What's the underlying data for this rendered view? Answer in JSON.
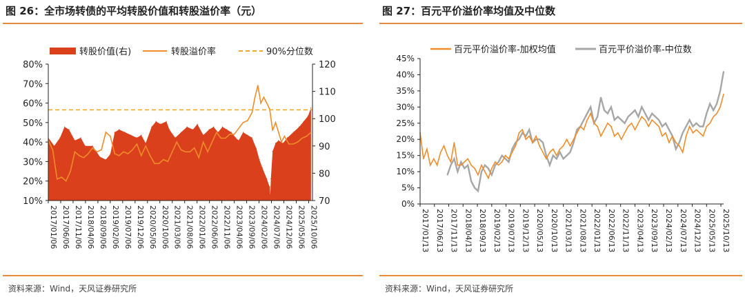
{
  "left_figure": {
    "title": "图 26：全市场转债的平均转股价值和转股溢价率（元）",
    "source": "资料来源：Wind，天风证券研究所"
  },
  "right_figure": {
    "title": "图 27：百元平价溢价率均值及中位数",
    "source": "资料来源：Wind，天风证券研究所"
  },
  "colors": {
    "accent": "#e68a3c",
    "bar_red": "#d9401b",
    "line_orange": "#f08c2a",
    "dash_orange": "#f2a827",
    "line_gray": "#a6a6a6",
    "axis": "#222222"
  },
  "chart_data": [
    {
      "type": "area",
      "title": "全市场转债的平均转股价值和转股溢价率（元）",
      "legend": [
        "转股价值(右)",
        "转股溢价率",
        "90%分位数"
      ],
      "legend_position": "top",
      "y_left": {
        "ylim": [
          10,
          80
        ],
        "ticks": [
          10,
          20,
          30,
          40,
          50,
          60,
          70,
          80
        ],
        "tick_labels": [
          "10%",
          "20%",
          "30%",
          "40%",
          "50%",
          "60%",
          "70%",
          "80%"
        ]
      },
      "y_right": {
        "ylim": [
          70,
          120
        ],
        "ticks": [
          70,
          80,
          90,
          100,
          110,
          120
        ],
        "tick_labels": [
          "70",
          "80",
          "90",
          "100",
          "110",
          "120"
        ]
      },
      "x_range": [
        2017.0,
        2025.95
      ],
      "x_ticks": [
        2017.0,
        2017.42,
        2017.84,
        2018.26,
        2018.68,
        2019.1,
        2019.52,
        2019.94,
        2020.36,
        2020.78,
        2021.2,
        2021.62,
        2022.04,
        2022.46,
        2022.88,
        2023.3,
        2023.72,
        2024.14,
        2024.56,
        2024.98,
        2025.4,
        2025.82
      ],
      "x_tick_labels": [
        "2017/01/06",
        "2017/06/06",
        "2017/11/06",
        "2018/04/06",
        "2018/09/06",
        "2019/02/06",
        "2019/07/06",
        "2019/12/06",
        "2020/05/06",
        "2020/10/06",
        "2021/03/06",
        "2021/08/06",
        "2022/01/06",
        "2022/06/06",
        "2022/11/06",
        "2023/04/06",
        "2023/09/06",
        "2024/02/06",
        "2024/07/06",
        "2024/12/06",
        "2025/05/06",
        "2025/10/06"
      ],
      "series": [
        {
          "name": "转股价值(右)",
          "type": "area",
          "axis": "right",
          "x": [
            2017.0,
            2017.2,
            2017.4,
            2017.55,
            2017.7,
            2017.9,
            2018.1,
            2018.25,
            2018.5,
            2018.75,
            2018.95,
            2019.1,
            2019.25,
            2019.4,
            2019.6,
            2019.8,
            2020.0,
            2020.15,
            2020.3,
            2020.5,
            2020.65,
            2020.8,
            2021.0,
            2021.1,
            2021.3,
            2021.5,
            2021.7,
            2021.9,
            2022.05,
            2022.25,
            2022.45,
            2022.6,
            2022.75,
            2022.9,
            2023.05,
            2023.2,
            2023.35,
            2023.45,
            2023.6,
            2023.75,
            2023.9,
            2024.05,
            2024.15,
            2024.25,
            2024.4,
            2024.5,
            2024.52,
            2024.54,
            2024.6,
            2024.7,
            2024.8,
            2024.95,
            2025.1,
            2025.3,
            2025.5,
            2025.65,
            2025.8,
            2025.9
          ],
          "values": [
            93,
            90,
            93,
            97,
            96,
            92,
            93,
            90,
            90,
            86,
            85,
            87,
            95,
            96,
            95,
            94,
            93,
            94,
            91,
            97,
            99,
            98,
            99,
            96,
            93,
            95,
            97,
            96,
            98,
            94,
            96,
            97,
            95,
            97,
            96,
            95,
            93,
            92,
            95,
            94,
            93,
            89,
            85,
            82,
            78,
            75,
            72,
            78,
            88,
            91,
            92,
            91,
            93,
            95,
            97,
            99,
            101,
            104
          ]
        },
        {
          "name": "转股溢价率",
          "type": "line",
          "axis": "left",
          "x": [
            2017.0,
            2017.15,
            2017.3,
            2017.45,
            2017.6,
            2017.75,
            2017.9,
            2018.05,
            2018.2,
            2018.35,
            2018.5,
            2018.65,
            2018.8,
            2018.95,
            2019.1,
            2019.25,
            2019.4,
            2019.55,
            2019.7,
            2019.85,
            2020.0,
            2020.15,
            2020.3,
            2020.45,
            2020.6,
            2020.75,
            2020.9,
            2021.05,
            2021.2,
            2021.35,
            2021.5,
            2021.65,
            2021.8,
            2021.95,
            2022.1,
            2022.25,
            2022.4,
            2022.55,
            2022.7,
            2022.85,
            2023.0,
            2023.15,
            2023.3,
            2023.45,
            2023.6,
            2023.75,
            2023.9,
            2024.0,
            2024.1,
            2024.2,
            2024.3,
            2024.4,
            2024.5,
            2024.6,
            2024.7,
            2024.8,
            2024.9,
            2025.0,
            2025.15,
            2025.3,
            2025.45,
            2025.6,
            2025.75,
            2025.9
          ],
          "values": [
            41,
            36,
            21,
            22,
            20,
            25,
            35,
            33,
            32,
            34,
            37,
            35,
            36,
            45,
            43,
            34,
            33,
            35,
            34,
            36,
            39,
            33,
            38,
            33,
            29,
            29,
            31,
            30,
            35,
            40,
            36,
            35,
            35,
            37,
            32,
            40,
            35,
            40,
            45,
            42,
            42,
            44,
            44,
            47,
            50,
            51,
            55,
            63,
            69,
            60,
            63,
            60,
            57,
            46,
            50,
            45,
            40,
            43,
            39,
            39,
            40,
            42,
            43,
            45
          ]
        },
        {
          "name": "90%分位数",
          "type": "dashed",
          "axis": "left",
          "values": [
            56.5
          ]
        }
      ]
    },
    {
      "type": "line",
      "title": "百元平价溢价率均值及中位数",
      "legend": [
        "百元平价溢价率-加权均值",
        "百元平价溢价率-中位数"
      ],
      "legend_position": "top",
      "y": {
        "ylim": [
          0,
          45
        ],
        "ticks": [
          0,
          5,
          10,
          15,
          20,
          25,
          30,
          35,
          40,
          45
        ],
        "tick_labels": [
          "0%",
          "5%",
          "10%",
          "15%",
          "20%",
          "25%",
          "30%",
          "35%",
          "40%",
          "45%"
        ]
      },
      "x_range": [
        2017.0,
        2025.9
      ],
      "x_ticks": [
        2017.0,
        2017.42,
        2017.84,
        2018.26,
        2018.68,
        2019.1,
        2019.52,
        2019.94,
        2020.36,
        2020.78,
        2021.2,
        2021.62,
        2022.04,
        2022.46,
        2022.88,
        2023.3,
        2023.72,
        2024.14,
        2024.56,
        2024.98,
        2025.4,
        2025.82
      ],
      "x_tick_labels": [
        "2017/01/13",
        "2017/06/13",
        "2017/11/13",
        "2018/04/13",
        "2018/09/13",
        "2019/02/13",
        "2019/07/13",
        "2019/12/13",
        "2020/05/13",
        "2020/10/13",
        "2021/03/13",
        "2021/08/13",
        "2022/01/13",
        "2022/06/13",
        "2022/11/13",
        "2023/04/13",
        "2023/09/13",
        "2024/02/13",
        "2024/07/13",
        "2024/12/13",
        "2025/05/13",
        "2025/10/13"
      ],
      "series": [
        {
          "name": "百元平价溢价率-加权均值",
          "x": [
            2017.0,
            2017.1,
            2017.2,
            2017.3,
            2017.4,
            2017.5,
            2017.6,
            2017.7,
            2017.8,
            2017.9,
            2018.0,
            2018.1,
            2018.2,
            2018.3,
            2018.4,
            2018.5,
            2018.6,
            2018.7,
            2018.8,
            2018.9,
            2019.0,
            2019.1,
            2019.2,
            2019.3,
            2019.4,
            2019.5,
            2019.6,
            2019.7,
            2019.8,
            2019.9,
            2020.0,
            2020.1,
            2020.2,
            2020.3,
            2020.4,
            2020.5,
            2020.6,
            2020.7,
            2020.8,
            2020.9,
            2021.0,
            2021.1,
            2021.2,
            2021.3,
            2021.4,
            2021.5,
            2021.6,
            2021.7,
            2021.8,
            2021.9,
            2022.0,
            2022.1,
            2022.2,
            2022.3,
            2022.4,
            2022.5,
            2022.6,
            2022.7,
            2022.8,
            2022.9,
            2023.0,
            2023.1,
            2023.2,
            2023.3,
            2023.4,
            2023.5,
            2023.6,
            2023.7,
            2023.8,
            2023.9,
            2024.0,
            2024.1,
            2024.2,
            2024.3,
            2024.4,
            2024.5,
            2024.6,
            2024.7,
            2024.8,
            2024.9,
            2025.0,
            2025.1,
            2025.2,
            2025.3,
            2025.4,
            2025.5,
            2025.6,
            2025.7,
            2025.8,
            2025.9
          ],
          "values": [
            22,
            14,
            17,
            12,
            14,
            12,
            16,
            18,
            15,
            13,
            19,
            12,
            12,
            13,
            14,
            12,
            11,
            9,
            12,
            10,
            8,
            11,
            13,
            12,
            13,
            15,
            14,
            16,
            18,
            22,
            23,
            20,
            21,
            19,
            21,
            18,
            16,
            14,
            16,
            17,
            15,
            17,
            18,
            20,
            18,
            20,
            22,
            24,
            23,
            26,
            28,
            25,
            24,
            21,
            23,
            25,
            24,
            21,
            22,
            20,
            22,
            24,
            25,
            23,
            25,
            27,
            26,
            24,
            26,
            25,
            24,
            21,
            22,
            19,
            21,
            19,
            18,
            16,
            21,
            24,
            22,
            23,
            22,
            21,
            24,
            25,
            27,
            28,
            30,
            34
          ]
        },
        {
          "name": "百元平价溢价率-中位数",
          "x": [
            2017.8,
            2017.9,
            2018.0,
            2018.1,
            2018.2,
            2018.3,
            2018.4,
            2018.5,
            2018.6,
            2018.7,
            2018.8,
            2018.9,
            2019.0,
            2019.1,
            2019.2,
            2019.3,
            2019.4,
            2019.5,
            2019.6,
            2019.7,
            2019.8,
            2019.9,
            2020.0,
            2020.1,
            2020.2,
            2020.3,
            2020.4,
            2020.5,
            2020.6,
            2020.7,
            2020.8,
            2020.9,
            2021.0,
            2021.1,
            2021.2,
            2021.3,
            2021.4,
            2021.5,
            2021.6,
            2021.7,
            2021.8,
            2021.9,
            2022.0,
            2022.1,
            2022.2,
            2022.3,
            2022.4,
            2022.5,
            2022.6,
            2022.7,
            2022.8,
            2022.9,
            2023.0,
            2023.1,
            2023.2,
            2023.3,
            2023.4,
            2023.5,
            2023.6,
            2023.7,
            2023.8,
            2023.9,
            2024.0,
            2024.1,
            2024.2,
            2024.3,
            2024.4,
            2024.5,
            2024.6,
            2024.7,
            2024.8,
            2024.9,
            2025.0,
            2025.1,
            2025.2,
            2025.3,
            2025.4,
            2025.5,
            2025.6,
            2025.7,
            2025.8,
            2025.9
          ],
          "values": [
            9,
            12,
            14,
            10,
            13,
            11,
            12,
            7,
            5,
            4,
            10,
            12,
            11,
            9,
            12,
            13,
            15,
            14,
            13,
            17,
            19,
            20,
            22,
            21,
            23,
            19,
            20,
            20,
            19,
            15,
            12,
            15,
            14,
            16,
            14,
            15,
            16,
            19,
            23,
            24,
            26,
            28,
            30,
            25,
            27,
            33,
            29,
            28,
            30,
            26,
            27,
            26,
            25,
            27,
            28,
            29,
            27,
            30,
            28,
            26,
            28,
            27,
            26,
            24,
            25,
            23,
            21,
            17,
            19,
            22,
            24,
            26,
            24,
            25,
            24,
            24,
            28,
            31,
            29,
            31,
            35,
            41
          ]
        }
      ]
    }
  ]
}
